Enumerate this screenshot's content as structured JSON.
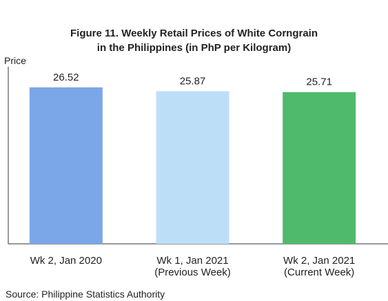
{
  "chart_data": {
    "type": "bar",
    "title": "Figure 11. Weekly Retail Prices of White Corngrain\nin the Philippines (in PhP per Kilogram)",
    "y_label": "Price",
    "categories": [
      "Wk 2, Jan 2020",
      "Wk 1, Jan 2021\n(Previous Week)",
      "Wk 2, Jan 2021\n(Current Week)"
    ],
    "values": [
      26.52,
      25.87,
      25.71
    ],
    "colors": [
      "#7ba7e8",
      "#bcdff7",
      "#4fba6c"
    ],
    "ylim": [
      0,
      30
    ],
    "source": "Source: Philippine Statistics Authority"
  }
}
